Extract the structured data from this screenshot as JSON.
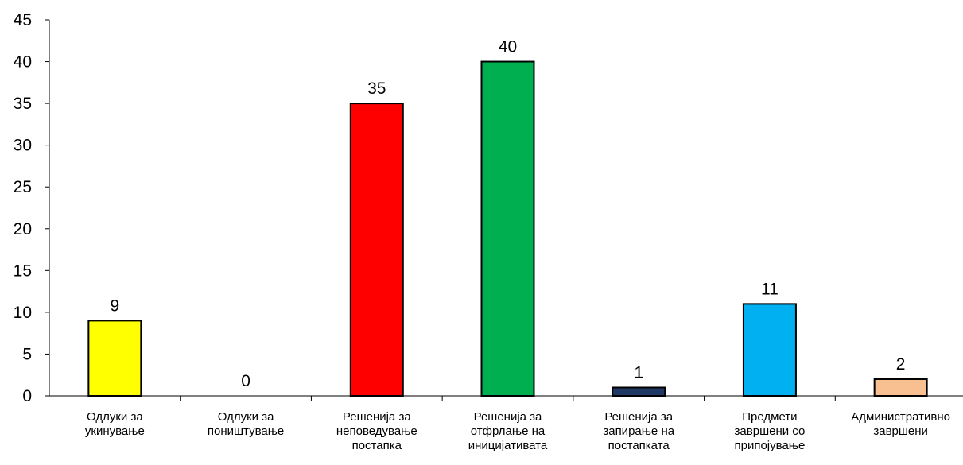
{
  "chart_data": {
    "type": "bar",
    "title": "",
    "xlabel": "",
    "ylabel": "",
    "ylim": [
      0,
      45
    ],
    "yticks": [
      0,
      5,
      10,
      15,
      20,
      25,
      30,
      35,
      40,
      45
    ],
    "grid": false,
    "legend": "none",
    "categories": [
      [
        "Одлуки за",
        "укинување"
      ],
      [
        "Одлуки за",
        "поништување"
      ],
      [
        "Решенија за",
        "неповедување",
        "постапка"
      ],
      [
        "Решенија за",
        "отфрлање на",
        "иницијативата"
      ],
      [
        "Решенија за",
        "запирање на",
        "постапката"
      ],
      [
        "Предмети",
        "завршени со",
        "припојување"
      ],
      [
        "Административно",
        "завршени"
      ]
    ],
    "values": [
      9,
      0,
      35,
      40,
      1,
      11,
      2
    ],
    "data_labels": [
      "9",
      "0",
      "35",
      "40",
      "1",
      "11",
      "2"
    ],
    "colors": [
      "#ffff00",
      "#ffff00",
      "#ff0000",
      "#00b050",
      "#1f3864",
      "#00b0f0",
      "#f8c090"
    ]
  }
}
